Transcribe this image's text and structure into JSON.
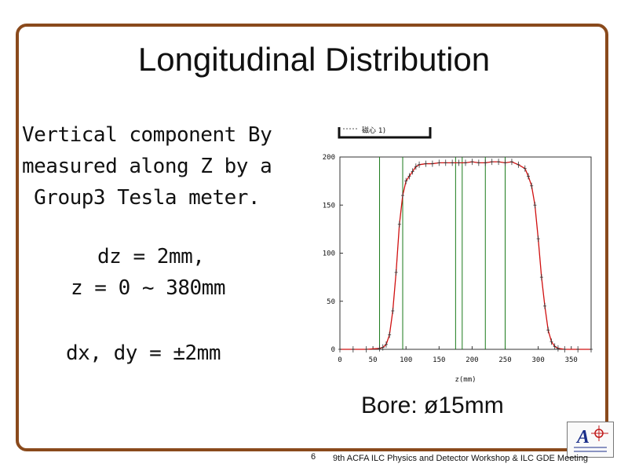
{
  "slide": {
    "title": "Longitudinal Distribution",
    "description_lines": [
      "Vertical component By",
      "measured along Z by a",
      "Group3 Tesla meter."
    ],
    "dz": "dz = 2mm,",
    "z_range": "z = 0 ~ 380mm",
    "dxdy": "dx, dy = ±2mm",
    "bore": "Bore: ø15mm",
    "page_number": "6",
    "footer": "9th ACFA ILC Physics and Detector Workshop & ILC GDE Meeting",
    "colors": {
      "frame": "#8a4a1c",
      "curve": "#d01010",
      "markers": "#1a7a1a"
    }
  },
  "chart_data": {
    "type": "line",
    "legend": "磁心 1)",
    "legend_placement": "top",
    "xlabel": "z(mm)",
    "ylabel": "",
    "xlim": [
      0,
      380
    ],
    "ylim": [
      0,
      200
    ],
    "xticks": [
      0,
      50,
      100,
      150,
      200,
      250,
      300,
      350
    ],
    "xtick_labels": [
      "0",
      "50",
      "100",
      "150",
      "200",
      "250",
      "300",
      "350"
    ],
    "yticks": [
      0,
      50,
      100,
      150,
      200
    ],
    "ytick_labels": [
      "0",
      "50",
      "100",
      "150",
      "200"
    ],
    "grid": false,
    "vertical_markers": [
      60,
      95,
      175,
      185,
      220,
      250
    ],
    "series": [
      {
        "x": [
          0,
          20,
          40,
          60,
          65,
          70,
          75,
          80,
          85,
          90,
          95,
          100,
          105,
          110,
          115,
          120,
          130,
          140,
          150,
          160,
          170,
          180,
          190,
          200,
          210,
          220,
          230,
          240,
          250,
          260,
          270,
          280,
          285,
          290,
          295,
          300,
          305,
          310,
          315,
          320,
          325,
          330,
          340,
          360,
          380
        ],
        "values": [
          0,
          0,
          0,
          1,
          2,
          5,
          15,
          40,
          80,
          130,
          160,
          175,
          180,
          185,
          190,
          192,
          193,
          193,
          194,
          194,
          194,
          194,
          194,
          195,
          194,
          194,
          195,
          195,
          194,
          195,
          192,
          188,
          180,
          170,
          150,
          115,
          75,
          45,
          20,
          8,
          3,
          1,
          0,
          0,
          0
        ]
      }
    ]
  }
}
